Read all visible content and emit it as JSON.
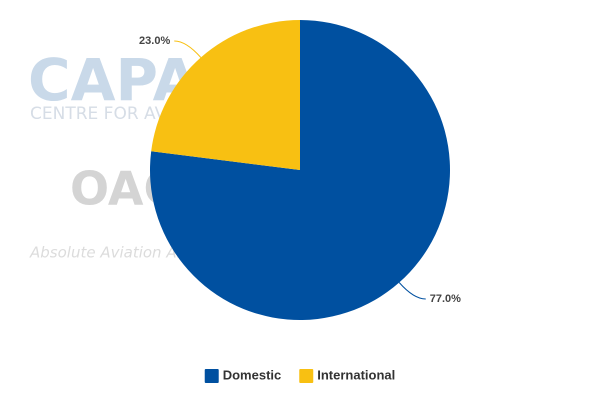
{
  "chart_data": {
    "type": "pie",
    "watermarks": [
      "CAPA",
      "CENTRE FOR AVIATION",
      "OAG",
      "Absolute Aviation Analytics"
    ],
    "categories": [
      "Domestic",
      "International"
    ],
    "values": [
      77.0,
      23.0
    ],
    "value_labels": [
      "77.0%",
      "23.0%"
    ],
    "colors": [
      "#0050a0",
      "#f8c012"
    ],
    "start_angle": 0,
    "direction": "clockwise",
    "legend": "bottom"
  }
}
